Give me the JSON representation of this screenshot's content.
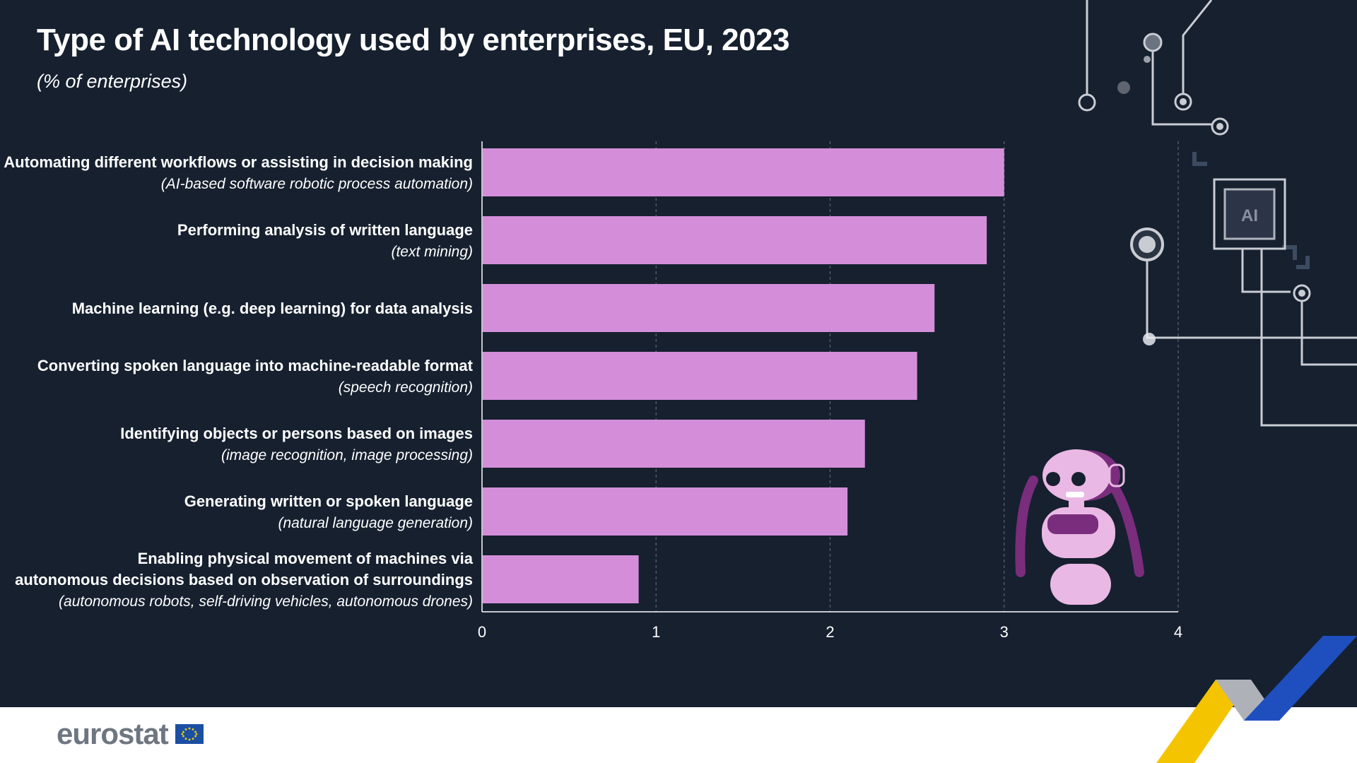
{
  "header": {
    "title": "Type of AI technology used by enterprises, EU, 2023",
    "subtitle": "(% of enterprises)"
  },
  "footer": {
    "logo_text": "eurostat"
  },
  "decoration": {
    "chip_label": "AI"
  },
  "colors": {
    "background": "#16202f",
    "bar": "#d48ed9",
    "text": "#ffffff",
    "grid": "#5d6675",
    "robot_light": "#eab8e4",
    "robot_dark": "#7a2d7c"
  },
  "chart_data": {
    "type": "bar",
    "orientation": "horizontal",
    "title": "Type of AI technology used by enterprises, EU, 2023",
    "subtitle": "(% of enterprises)",
    "xlim": [
      0,
      4
    ],
    "xticks": [
      "0",
      "1",
      "2",
      "3",
      "4"
    ],
    "grid": true,
    "categories": [
      {
        "lines": [
          "Automating different workflows or assisting in decision making"
        ],
        "note": "(AI-based software robotic process automation)",
        "value": 3.0
      },
      {
        "lines": [
          "Performing analysis of written language"
        ],
        "note": "(text mining)",
        "value": 2.9
      },
      {
        "lines": [
          "Machine learning (e.g. deep learning) for data analysis"
        ],
        "note": "",
        "value": 2.6
      },
      {
        "lines": [
          "Converting spoken language into machine-readable format"
        ],
        "note": "(speech recognition)",
        "value": 2.5
      },
      {
        "lines": [
          "Identifying objects or persons based on images"
        ],
        "note": "(image recognition, image processing)",
        "value": 2.2
      },
      {
        "lines": [
          "Generating written or spoken language"
        ],
        "note": "(natural language generation)",
        "value": 2.1
      },
      {
        "lines": [
          "Enabling physical movement of machines via",
          "autonomous decisions based on observation of surroundings"
        ],
        "note": "(autonomous robots, self-driving vehicles, autonomous drones)",
        "value": 0.9
      }
    ]
  }
}
